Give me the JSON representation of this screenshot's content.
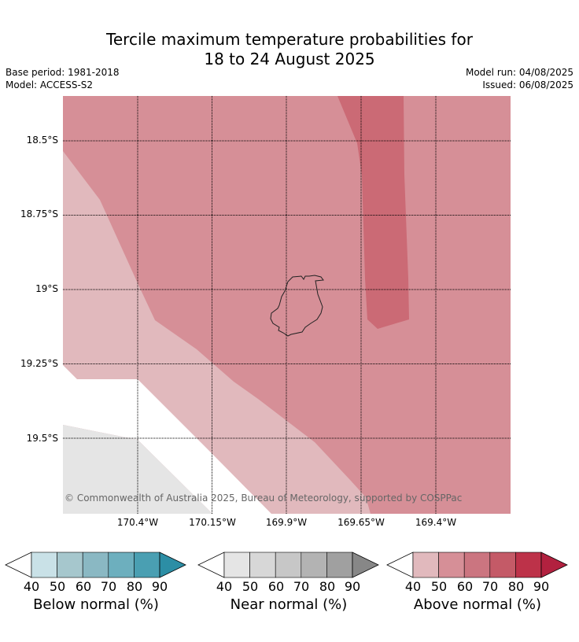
{
  "title": {
    "line1": "Tercile maximum temperature probabilities for",
    "line2": "18 to 24 August 2025"
  },
  "meta": {
    "base_period": "Base period: 1981-2018",
    "model": "Model: ACCESS-S2",
    "model_run": "Model run: 04/08/2025",
    "issued": "Issued: 06/08/2025"
  },
  "map": {
    "lat_labels": [
      "18.5°S",
      "18.75°S",
      "19°S",
      "19.25°S",
      "19.5°S"
    ],
    "lon_labels": [
      "170.4°W",
      "170.15°W",
      "169.9°W",
      "169.65°W",
      "169.4°W"
    ],
    "copyright": "© Commonwealth of Australia 2025, Bureau of Meteorology, supported by COSPPac",
    "colors": {
      "above_50": "#d68f97",
      "above_40": "#e1b9bd",
      "above_60": "#cb6a75",
      "near_40": "#e5e5e5",
      "none": "#ffffff",
      "grid": "#000000"
    }
  },
  "legends": [
    {
      "title": "Below normal (%)",
      "ticks": [
        "40",
        "50",
        "60",
        "70",
        "80",
        "90"
      ],
      "colors": [
        "#c9e1e7",
        "#a6c7cd",
        "#8ab8c3",
        "#6dafbe",
        "#4a9fb2",
        "#2c8ea5"
      ]
    },
    {
      "title": "Near normal (%)",
      "ticks": [
        "40",
        "50",
        "60",
        "70",
        "80",
        "90"
      ],
      "colors": [
        "#e5e5e5",
        "#d7d7d7",
        "#c7c7c7",
        "#b3b3b3",
        "#a0a0a0",
        "#878787"
      ]
    },
    {
      "title": "Above normal (%)",
      "ticks": [
        "40",
        "50",
        "60",
        "70",
        "80",
        "90"
      ],
      "colors": [
        "#e1b9bd",
        "#d68f97",
        "#cb7580",
        "#c45a67",
        "#bd3249",
        "#b2213f"
      ]
    }
  ]
}
